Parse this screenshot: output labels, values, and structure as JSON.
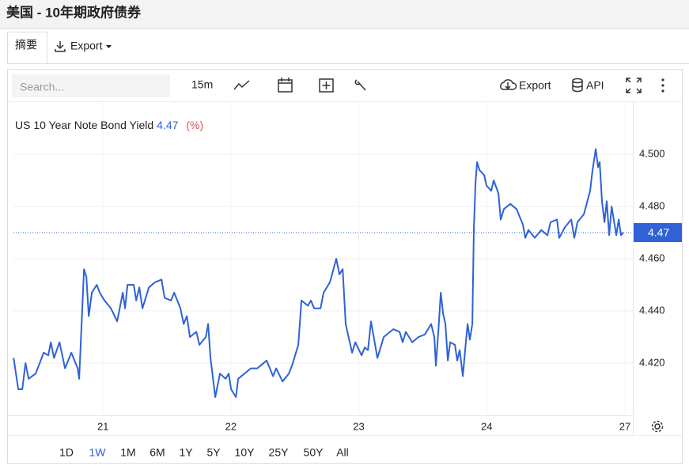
{
  "header": {
    "title": "美国 - 10年期政府债券"
  },
  "tabs": [
    "摘要",
    "Export"
  ],
  "toolbar": {
    "search_placeholder": "Search...",
    "interval": "15m",
    "export": "Export",
    "api": "API"
  },
  "chart_data": {
    "type": "line",
    "unit": "(%)",
    "last_value": 4.47,
    "x": [
      0.301,
      0.338,
      0.369,
      0.394,
      0.419,
      0.474,
      0.536,
      0.573,
      0.592,
      0.617,
      0.66,
      0.703,
      0.753,
      0.802,
      0.814,
      0.852,
      0.87,
      0.889,
      0.913,
      0.951,
      0.975,
      1.012,
      1.062,
      1.111,
      1.155,
      1.173,
      1.192,
      1.241,
      1.26,
      1.284,
      1.309,
      1.359,
      1.408,
      1.458,
      1.482,
      1.532,
      1.557,
      1.606,
      1.631,
      1.656,
      1.68,
      1.73,
      1.754,
      1.804,
      1.822,
      1.841,
      1.878,
      1.915,
      1.959,
      1.983,
      2.002,
      2.039,
      2.057,
      2.107,
      2.156,
      2.206,
      2.231,
      2.28,
      2.33,
      2.354,
      2.404,
      2.453,
      2.478,
      2.527,
      2.552,
      2.602,
      2.626,
      2.651,
      2.701,
      2.725,
      2.775,
      2.824,
      2.849,
      2.874,
      2.898,
      2.948,
      2.973,
      3.022,
      3.047,
      3.072,
      3.096,
      3.146,
      3.195,
      3.245,
      3.27,
      3.319,
      3.344,
      3.368,
      3.418,
      3.467,
      3.517,
      3.566,
      3.591,
      3.603,
      3.622,
      3.641,
      3.659,
      3.678,
      3.696,
      3.715,
      3.752,
      3.77,
      3.789,
      3.814,
      3.832,
      3.851,
      3.869,
      3.888,
      3.9,
      3.913,
      3.925,
      3.944,
      3.981,
      3.999,
      4.036,
      4.055,
      4.092,
      4.11,
      4.135,
      4.185,
      4.234,
      4.284,
      4.302,
      4.327,
      4.376,
      4.426,
      4.475,
      4.5,
      4.55,
      4.568,
      4.611,
      4.661,
      4.685,
      4.71,
      4.76,
      4.809,
      4.828,
      4.853,
      4.871,
      4.884,
      4.902,
      4.921,
      4.939,
      4.958,
      4.977,
      5.014,
      5.032,
      5.051,
      5.069
    ],
    "series": [
      {
        "name": "US 10 Year Note Bond Yield",
        "color": "#2f62d6",
        "values": [
          4.422,
          4.41,
          4.41,
          4.42,
          4.414,
          4.416,
          4.424,
          4.423,
          4.428,
          4.422,
          4.428,
          4.418,
          4.424,
          4.418,
          4.414,
          4.456,
          4.453,
          4.438,
          4.447,
          4.45,
          4.447,
          4.444,
          4.441,
          4.436,
          4.447,
          4.441,
          4.45,
          4.45,
          4.444,
          4.449,
          4.441,
          4.449,
          4.451,
          4.452,
          4.445,
          4.444,
          4.447,
          4.441,
          4.435,
          4.438,
          4.43,
          4.432,
          4.427,
          4.43,
          4.435,
          4.422,
          4.407,
          4.416,
          4.414,
          4.416,
          4.41,
          4.407,
          4.414,
          4.416,
          4.418,
          4.418,
          4.419,
          4.421,
          4.415,
          4.418,
          4.413,
          4.416,
          4.419,
          4.427,
          4.444,
          4.442,
          4.444,
          4.441,
          4.441,
          4.447,
          4.451,
          4.46,
          4.454,
          4.456,
          4.435,
          4.424,
          4.428,
          4.423,
          4.426,
          4.425,
          4.436,
          4.422,
          4.43,
          4.432,
          4.433,
          4.432,
          4.428,
          4.432,
          4.428,
          4.43,
          4.431,
          4.435,
          4.43,
          4.419,
          4.432,
          4.447,
          4.439,
          4.435,
          4.421,
          4.428,
          4.427,
          4.421,
          4.425,
          4.415,
          4.425,
          4.435,
          4.429,
          4.435,
          4.471,
          4.489,
          4.497,
          4.494,
          4.492,
          4.488,
          4.486,
          4.49,
          4.485,
          4.475,
          4.479,
          4.481,
          4.479,
          4.473,
          4.468,
          4.471,
          4.468,
          4.471,
          4.469,
          4.474,
          4.475,
          4.468,
          4.472,
          4.475,
          4.468,
          4.474,
          4.477,
          4.486,
          4.494,
          4.502,
          4.495,
          4.497,
          4.482,
          4.474,
          4.482,
          4.469,
          4.48,
          4.469,
          4.475,
          4.469,
          4.47
        ]
      }
    ],
    "xlim": [
      0.3,
      5.143
    ],
    "ylim": [
      4.4,
      4.52
    ],
    "xticks": [
      {
        "value": 1,
        "label": "21"
      },
      {
        "value": 2,
        "label": "22"
      },
      {
        "value": 3,
        "label": "23"
      },
      {
        "value": 4,
        "label": "24"
      },
      {
        "value": 5.081,
        "label": "27"
      }
    ],
    "yticks": [
      {
        "value": 4.42,
        "label": "4.420"
      },
      {
        "value": 4.44,
        "label": "4.440"
      },
      {
        "value": 4.46,
        "label": "4.460"
      },
      {
        "value": 4.48,
        "label": "4.480"
      },
      {
        "value": 4.5,
        "label": "4.500"
      }
    ],
    "grid": true,
    "ranges": [
      "1D",
      "1W",
      "1M",
      "6M",
      "1Y",
      "5Y",
      "10Y",
      "25Y",
      "50Y",
      "All"
    ],
    "selected_range": "1W"
  }
}
